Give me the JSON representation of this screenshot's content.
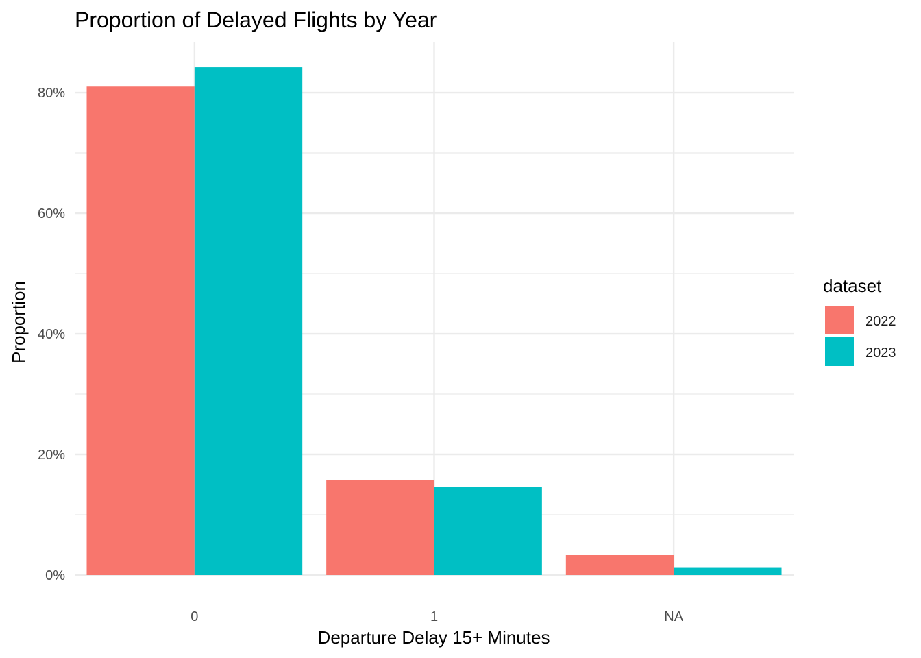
{
  "chart_data": {
    "type": "bar",
    "title": "Proportion of Delayed Flights by Year",
    "xlabel": "Departure Delay 15+ Minutes",
    "ylabel": "Proportion",
    "categories": [
      "0",
      "1",
      "NA"
    ],
    "series": [
      {
        "name": "2022",
        "color": "#F8766D",
        "values": [
          81.0,
          15.7,
          3.3
        ]
      },
      {
        "name": "2023",
        "color": "#00BFC4",
        "values": [
          84.2,
          14.6,
          1.3
        ]
      }
    ],
    "ylim": [
      0,
      88.3
    ],
    "yticks": [
      0,
      20,
      40,
      60,
      80
    ],
    "ytick_labels": [
      "0%",
      "20%",
      "40%",
      "60%",
      "80%"
    ],
    "grid": true,
    "legend": {
      "title": "dataset",
      "position": "right"
    }
  }
}
